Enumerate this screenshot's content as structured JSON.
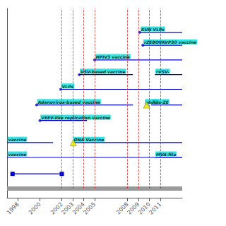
{
  "chart_data": {
    "type": "timeline",
    "background_color": "#ffffff",
    "color": "#0000cc",
    "label_color": "#00dddd",
    "label_text_color": "#000000",
    "xlim": [
      1997.0,
      2013.0
    ],
    "xticks": [
      1998,
      2000,
      2002,
      2003,
      2004,
      2005,
      2008,
      2009,
      2010,
      2011
    ],
    "ylim": [
      0.5,
      10.8
    ],
    "tick_labels": "x",
    "grid": false,
    "dashed_lines": {
      "x": [
        2002,
        2003,
        2004,
        2005,
        2008,
        2009,
        2010,
        2011
      ],
      "from_y": 1.0,
      "color": "#cc2222",
      "line_style": "dashed"
    },
    "timeline_bar": {
      "y": 1.0,
      "color": "#999999"
    },
    "vaccines": [
      {
        "label": "KUN VLPs",
        "start": 2009.1,
        "end": 2013.0,
        "y": 9.5,
        "dot_x": 2009.1,
        "label_x": 2009.2,
        "label_y": 9.55
      },
      {
        "label": "rZEBOVAVP30 vaccine",
        "start": 2009.4,
        "end": 2013.0,
        "y": 8.8,
        "dot_x": 2009.4,
        "label_x": 2009.45,
        "label_y": 8.85
      },
      {
        "label": "HPIV3 vaccine",
        "start": 2005.0,
        "end": 2013.0,
        "y": 8.0,
        "dot_x": 2005.0,
        "label_x": 2005.05,
        "label_y": 8.05
      },
      {
        "label": "rVSV-",
        "start": 2010.5,
        "end": 2013.0,
        "y": 7.2,
        "dot_x": null,
        "label_x": 2010.55,
        "label_y": 7.25
      },
      {
        "label": "VSV-based vaccine",
        "start": 2003.6,
        "end": 2008.5,
        "y": 7.2,
        "dot_x": 2003.6,
        "label_x": 2003.65,
        "label_y": 7.25
      },
      {
        "label": "VLPs",
        "start": 2001.9,
        "end": 2013.0,
        "y": 6.4,
        "dot_x": 2001.9,
        "label_x": 2001.95,
        "label_y": 6.45
      },
      {
        "label": "rAdS",
        "start": 2009.6,
        "end": 2009.95,
        "y": 5.55,
        "dot_x": null,
        "label_x": 2009.6,
        "label_y": 5.6
      },
      {
        "label": "Ads-ZE",
        "start": 2010.15,
        "end": 2013.0,
        "y": 5.55,
        "dot_x": null,
        "label_x": 2010.2,
        "label_y": 5.6
      },
      {
        "label": "Adenovirus-based vaccine",
        "start": 1999.7,
        "end": 2008.5,
        "y": 5.55,
        "dot_x": 1999.7,
        "label_x": 1999.75,
        "label_y": 5.6
      },
      {
        "label": "VEEV-like replication vaccine",
        "start": 2000.0,
        "end": 2004.3,
        "y": 4.7,
        "dot_x": 2000.0,
        "label_x": 2000.05,
        "label_y": 4.75
      },
      {
        "label": "DNA Vaccine",
        "start": 2003.0,
        "end": 2013.0,
        "y": 3.5,
        "dot_x": null,
        "label_x": 2003.05,
        "label_y": 3.55
      },
      {
        "label": "vaccine",
        "start": 1997.0,
        "end": 2001.2,
        "y": 3.5,
        "dot_x": null,
        "label_x": 1997.05,
        "label_y": 3.55
      },
      {
        "label": "vaccine",
        "start": 1997.0,
        "end": 2013.0,
        "y": 2.7,
        "dot_x": null,
        "label_x": 1997.05,
        "label_y": 2.75
      },
      {
        "label": "MVA-fila",
        "start": 2010.5,
        "end": 2013.0,
        "y": 2.7,
        "dot_x": null,
        "label_x": 2010.55,
        "label_y": 2.75
      }
    ],
    "milestones": {
      "marker": "triangle",
      "color": "#eeee00",
      "edge_color": "#888800",
      "points": [
        {
          "x": 2003.05,
          "y": 3.5
        },
        {
          "x": 2009.75,
          "y": 5.55
        }
      ]
    },
    "arrow": {
      "y": 1.8,
      "start": 1997.5,
      "end": 2002.0
    }
  }
}
